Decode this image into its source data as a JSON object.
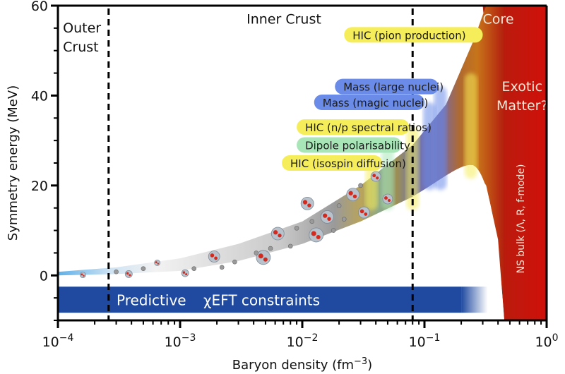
{
  "chart_data": {
    "type": "area",
    "title": "",
    "xlabel": "Baryon density (fm",
    "xlabel_sup": "−3",
    "xlabel_close": ")",
    "ylabel": "Symmetry energy (MeV)",
    "xscale": "log",
    "xlim": [
      0.0001,
      1
    ],
    "ylim": [
      -10,
      60
    ],
    "grid": false,
    "x_ticks": [
      {
        "value": 0.0001,
        "base": "10",
        "exp": "−4"
      },
      {
        "value": 0.001,
        "base": "10",
        "exp": "−3"
      },
      {
        "value": 0.01,
        "base": "10",
        "exp": "−2"
      },
      {
        "value": 0.1,
        "base": "10",
        "exp": "−1"
      },
      {
        "value": 1,
        "base": "10",
        "exp": "0"
      }
    ],
    "y_ticks": [
      0,
      20,
      40,
      60
    ],
    "y_minor_step": 5,
    "region_boundaries": [
      {
        "name": "outer-inner-crust",
        "x": 0.00026
      },
      {
        "name": "crust-core",
        "x": 0.08
      }
    ],
    "region_labels": [
      {
        "name": "outer-crust",
        "lines": [
          "Outer",
          "Crust"
        ],
        "x": 0.00011,
        "y": 54
      },
      {
        "name": "inner-crust",
        "lines": [
          "Inner Crust"
        ],
        "x": 0.0035,
        "y": 56
      },
      {
        "name": "core",
        "lines": [
          "Core"
        ],
        "x": 0.3,
        "y": 56
      },
      {
        "name": "exotic-matter",
        "lines": [
          "Exotic",
          "Matter?"
        ],
        "x": 0.63,
        "y": 41
      }
    ],
    "symmetry_energy_band": {
      "x": [
        0.0001,
        0.0003,
        0.001,
        0.003,
        0.01,
        0.03,
        0.08,
        0.15,
        0.25,
        0.32,
        0.4,
        0.45
      ],
      "upper": [
        0.8,
        1.8,
        3.8,
        7.0,
        12.0,
        20.0,
        29.0,
        38.0,
        52.0,
        60.0,
        60.0,
        60.0
      ],
      "lower": [
        0.0,
        0.3,
        1.0,
        3.2,
        7.0,
        12.0,
        17.5,
        22.0,
        24.5,
        20.0,
        8.0,
        -10.0
      ]
    },
    "constraints": [
      {
        "label": "HIC (pion production)",
        "color": "#f5ee5a",
        "y": 53.5,
        "x_start": 0.022,
        "x_end": 0.3,
        "column_x": 0.24
      },
      {
        "label": "Mass (large nuclei)",
        "color": "#6b8be8",
        "y": 42.0,
        "x_start": 0.0185,
        "x_end": 0.13,
        "column_x": 0.135
      },
      {
        "label": "Mass (magic nuclei)",
        "color": "#6b8be8",
        "y": 38.5,
        "x_start": 0.0125,
        "x_end": 0.1,
        "column_x": 0.11
      },
      {
        "label": "HIC (n/p spectral ratios)",
        "color": "#f5ee5a",
        "y": 33.0,
        "x_start": 0.009,
        "x_end": 0.075,
        "column_x": 0.08
      },
      {
        "label": "Dipole polarisability",
        "color": "#a8e6b8",
        "y": 29.0,
        "x_start": 0.009,
        "x_end": 0.065,
        "column_x": 0.05
      },
      {
        "label": "HIC (isospin diffusion)",
        "color": "#f5ee5a",
        "y": 25.0,
        "x_start": 0.0068,
        "x_end": 0.045,
        "column_x": 0.037
      }
    ],
    "chiral_eft": {
      "label_a": "Predictive",
      "label_b": "χEFT constraints",
      "y_top": -2.5,
      "y_bottom": -8.3,
      "x_end": 0.2,
      "x_fade_end": 0.33,
      "color": "#1f4aa0"
    },
    "ns_bulk": {
      "label": "NS bulk (Λ, R, f-mode)",
      "color": "#c8160c"
    }
  }
}
